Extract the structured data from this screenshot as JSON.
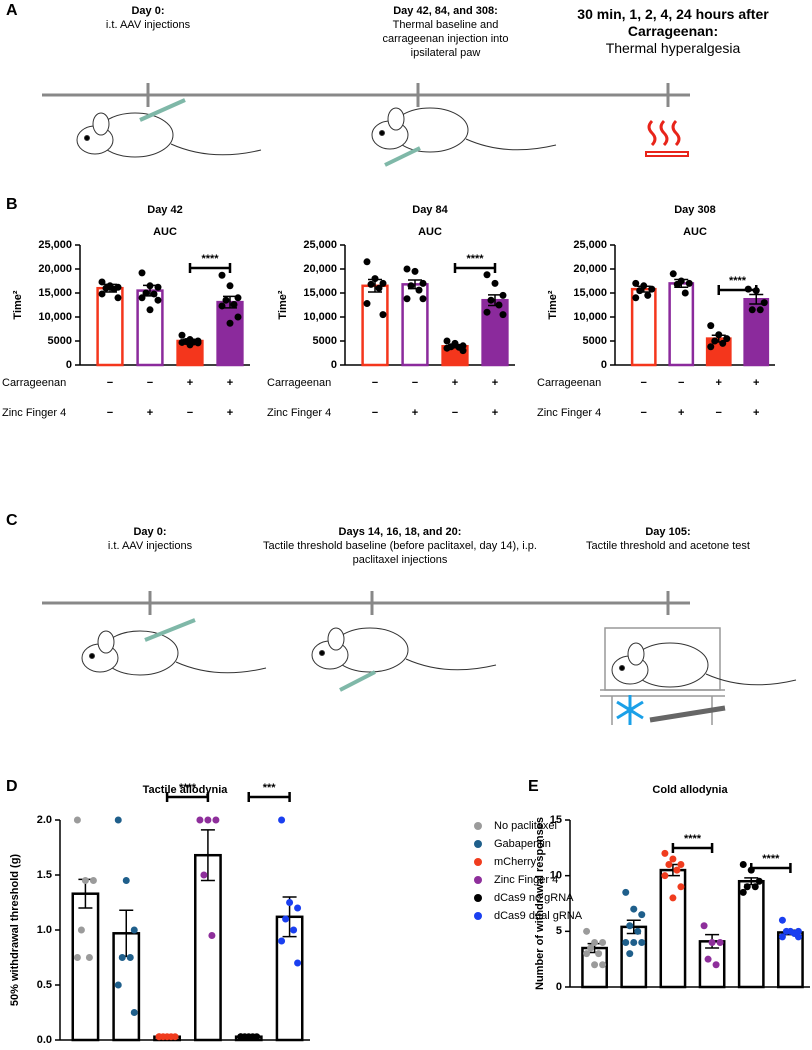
{
  "panel_labels": [
    "A",
    "B",
    "C",
    "D",
    "E"
  ],
  "timeline_a": {
    "events": [
      {
        "heading": "Day 0:",
        "text": "i.t. AAV injections"
      },
      {
        "heading": "Day 42, 84, and 308:",
        "text": "Thermal baseline and carrageenan injection into ipsilateral paw"
      },
      {
        "heading": "30 min, 1, 2, 4, 24 hours after Carrageenan:",
        "text": "Thermal hyperalgesia"
      }
    ]
  },
  "timeline_c": {
    "events": [
      {
        "heading": "Day 0:",
        "text": "i.t. AAV injections"
      },
      {
        "heading": "Days 14, 16, 18, and 20:",
        "text": "Tactile threshold baseline (before paclitaxel, day 14), i.p. paclitaxel injections"
      },
      {
        "heading": "Day 105:",
        "text": "Tactile threshold and acetone test"
      }
    ]
  },
  "chart_data": [
    {
      "type": "bar",
      "title": "Day 42",
      "subtitle": "AUC",
      "y_label": "Time²",
      "ylim": [
        0,
        25000
      ],
      "yticks": [
        0,
        5000,
        {
          "value": 10000,
          "label": "10,000"
        },
        {
          "value": 15000,
          "label": "15,000"
        },
        {
          "value": 20000,
          "label": "20,000"
        },
        {
          "value": 25000,
          "label": "25,000"
        }
      ],
      "values": [
        16000,
        15500,
        5000,
        13100
      ],
      "errors": [
        800,
        1100,
        300,
        1200
      ],
      "points": [
        [
          17300,
          16500,
          16200,
          16000,
          15800,
          14800,
          14000,
          16300
        ],
        [
          19200,
          16500,
          16200,
          15000,
          14800,
          14000,
          13500,
          11500
        ],
        [
          6200,
          5300,
          5000,
          4900,
          4800,
          4700,
          4600,
          4200
        ],
        [
          18700,
          16500,
          14000,
          13500,
          12600,
          12300,
          10000,
          8700
        ]
      ],
      "colors": [
        "#f4361c",
        "#8b2a9c",
        "#f4361c",
        "#8b2a9c"
      ],
      "filled": [
        false,
        false,
        true,
        true
      ],
      "point_color": "#000000",
      "significance": [
        "****"
      ],
      "rows": [
        {
          "label": "Carrageenan",
          "signs": [
            "−",
            "−",
            "+",
            "+"
          ]
        },
        {
          "label": "Zinc Finger 4",
          "signs": [
            "−",
            "+",
            "−",
            "+"
          ]
        }
      ]
    },
    {
      "type": "bar",
      "title": "Day 84",
      "subtitle": "AUC",
      "y_label": "Time²",
      "ylim": [
        0,
        25000
      ],
      "yticks": [
        0,
        5000,
        {
          "value": 10000,
          "label": "10,000"
        },
        {
          "value": 15000,
          "label": "15,000"
        },
        {
          "value": 20000,
          "label": "20,000"
        },
        {
          "value": 25000,
          "label": "25,000"
        }
      ],
      "values": [
        16500,
        16800,
        3900,
        13500
      ],
      "errors": [
        1300,
        900,
        300,
        1100
      ],
      "points": [
        [
          21500,
          18000,
          17000,
          16800,
          16000,
          12800,
          10500
        ],
        [
          20000,
          19500,
          17000,
          16500,
          15600,
          13800,
          13800
        ],
        [
          5000,
          4500,
          4000,
          3800,
          3700,
          3500,
          3000
        ],
        [
          18800,
          17000,
          14500,
          13500,
          12500,
          11000,
          10500
        ]
      ],
      "colors": [
        "#f4361c",
        "#8b2a9c",
        "#f4361c",
        "#8b2a9c"
      ],
      "filled": [
        false,
        false,
        true,
        true
      ],
      "point_color": "#000000",
      "significance": [
        "****"
      ],
      "rows": [
        {
          "label": "Carrageenan",
          "signs": [
            "−",
            "−",
            "+",
            "+"
          ]
        },
        {
          "label": "Zinc Finger 4",
          "signs": [
            "−",
            "+",
            "−",
            "+"
          ]
        }
      ]
    },
    {
      "type": "bar",
      "title": "Day 308",
      "subtitle": "AUC",
      "y_label": "Time²",
      "ylim": [
        0,
        25000
      ],
      "yticks": [
        0,
        5000,
        {
          "value": 10000,
          "label": "10,000"
        },
        {
          "value": 15000,
          "label": "15,000"
        },
        {
          "value": 20000,
          "label": "20,000"
        },
        {
          "value": 25000,
          "label": "25,000"
        }
      ],
      "values": [
        15800,
        17000,
        5500,
        13700
      ],
      "errors": [
        600,
        800,
        700,
        1000
      ],
      "points": [
        [
          17000,
          16500,
          15800,
          15500,
          14500,
          14000
        ],
        [
          19000,
          17500,
          17000,
          16800,
          15000
        ],
        [
          8200,
          6300,
          5500,
          5000,
          4500,
          3800
        ],
        [
          15800,
          15500,
          13000,
          11500,
          11500
        ]
      ],
      "colors": [
        "#f4361c",
        "#8b2a9c",
        "#f4361c",
        "#8b2a9c"
      ],
      "filled": [
        false,
        false,
        true,
        true
      ],
      "point_color": "#000000",
      "significance": [
        "****"
      ],
      "rows": [
        {
          "label": "Carrageenan",
          "signs": [
            "−",
            "−",
            "+",
            "+"
          ]
        },
        {
          "label": "Zinc Finger 4",
          "signs": [
            "−",
            "+",
            "−",
            "+"
          ]
        }
      ]
    },
    {
      "type": "bar",
      "title": "Tactile allodynia",
      "y_label": "50% withdrawal threshold (g)",
      "ylim": [
        0,
        2
      ],
      "yticks": [
        {
          "value": 0,
          "label": "0.0"
        },
        0.5,
        {
          "value": 1,
          "label": "1.0"
        },
        1.5,
        {
          "value": 2,
          "label": "2.0"
        }
      ],
      "bar_color": "#000000",
      "series": [
        {
          "name": "No paclitaxel",
          "color": "#9b9b9b",
          "values": [
            1.33
          ],
          "errors": [
            0.13
          ],
          "points": [
            2.0,
            1.45,
            1.45,
            1.0,
            0.75,
            0.75
          ]
        },
        {
          "name": "Gabapentin",
          "color": "#1f5f8b",
          "values": [
            0.97
          ],
          "errors": [
            0.21
          ],
          "points": [
            2.0,
            1.45,
            1.0,
            0.75,
            0.75,
            0.5,
            0.25
          ]
        },
        {
          "name": "mCherry",
          "color": "#f03c1e",
          "values": [
            0.03
          ],
          "errors": [
            0.01
          ],
          "points": [
            0.03,
            0.03,
            0.03,
            0.03,
            0.03,
            0.03
          ]
        },
        {
          "name": "Zinc Finger 4",
          "color": "#8e2f9b",
          "values": [
            1.68
          ],
          "errors": [
            0.23
          ],
          "points": [
            2.0,
            2.0,
            2.0,
            1.5,
            0.95
          ]
        },
        {
          "name": "dCas9 no gRNA",
          "color": "#000000",
          "values": [
            0.03
          ],
          "errors": [
            0.01
          ],
          "points": [
            0.03,
            0.03,
            0.03,
            0.03,
            0.03,
            0.03
          ]
        },
        {
          "name": "dCas9 dual gRNA",
          "color": "#1a3ff0",
          "values": [
            1.12
          ],
          "errors": [
            0.18
          ],
          "points": [
            2.0,
            1.25,
            1.2,
            1.1,
            1.0,
            0.9,
            0.7
          ]
        }
      ],
      "significance": [
        "****",
        "***"
      ]
    },
    {
      "type": "bar",
      "title": "Cold allodynia",
      "y_label": "Number of withdrawal responses",
      "ylim": [
        0,
        15
      ],
      "yticks": [
        0,
        5,
        10,
        15
      ],
      "bar_color": "#000000",
      "values": [
        3.5,
        5.4,
        10.5,
        4.1,
        9.5,
        4.9
      ],
      "errors": [
        0.4,
        0.6,
        0.5,
        0.6,
        0.3,
        0.2
      ],
      "points": [
        [
          5,
          4,
          4,
          3.5,
          3,
          3,
          2,
          2
        ],
        [
          8.5,
          7,
          6.5,
          5.5,
          5,
          4,
          4,
          4,
          3
        ],
        [
          12,
          11.5,
          11,
          11,
          10.5,
          10,
          9,
          8
        ],
        [
          5.5,
          4,
          4,
          2.5,
          2
        ],
        [
          11,
          10.5,
          9.5,
          9,
          9,
          8.5
        ],
        [
          6,
          5,
          5,
          5,
          4.8,
          4.5,
          4.5
        ]
      ],
      "colors": [
        "#9b9b9b",
        "#1f5f8b",
        "#f03c1e",
        "#8e2f9b",
        "#000000",
        "#1a3ff0"
      ],
      "significance": [
        "****",
        "****"
      ]
    }
  ]
}
